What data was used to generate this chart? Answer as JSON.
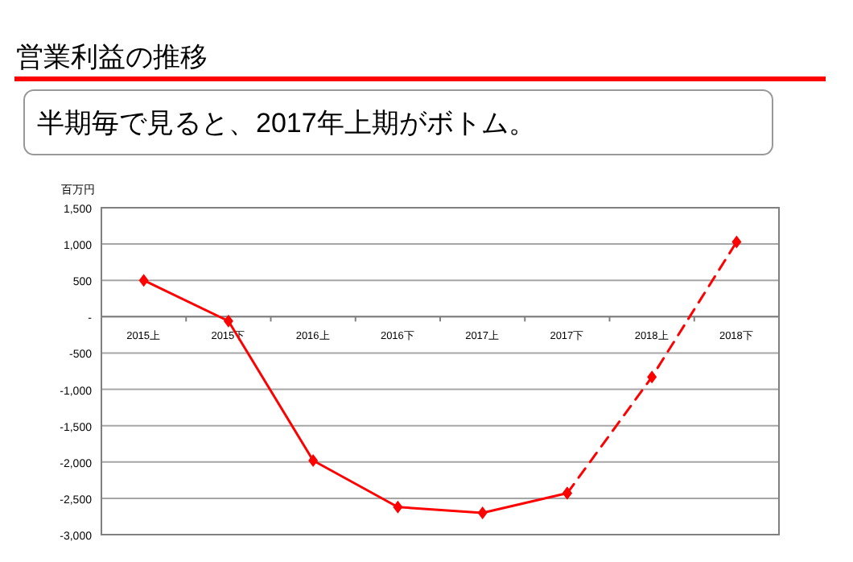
{
  "chart_data": {
    "type": "line",
    "title": "営業利益の推移",
    "subtitle": "半期毎で見ると、2017年上期がボトム。",
    "ylabel": "百万円",
    "categories": [
      "2015上",
      "2015下",
      "2016上",
      "2016下",
      "2017上",
      "2017下",
      "2018上",
      "2018下"
    ],
    "series": [
      {
        "color": "#ff0000",
        "line_style": "solid",
        "values": [
          500,
          -60,
          -1980,
          -2620,
          -2700,
          -2430,
          null,
          null
        ]
      },
      {
        "color": "#ff0000",
        "line_style": "dashed",
        "values": [
          null,
          null,
          null,
          null,
          null,
          -2430,
          -830,
          1030
        ]
      }
    ],
    "ylim": [
      -3000,
      1500
    ],
    "yticks": [
      {
        "value": 1500,
        "label": "1,500"
      },
      {
        "value": 1000,
        "label": "1,000"
      },
      500,
      {
        "value": 0,
        "label": "-"
      },
      -500,
      {
        "value": -1000,
        "label": "-1,000"
      },
      {
        "value": -1500,
        "label": "-1,500"
      },
      {
        "value": -2000,
        "label": "-2,000"
      },
      {
        "value": -2500,
        "label": "-2,500"
      },
      {
        "value": -3000,
        "label": "-3,000"
      }
    ],
    "grid": "y",
    "marker": "diamond"
  }
}
